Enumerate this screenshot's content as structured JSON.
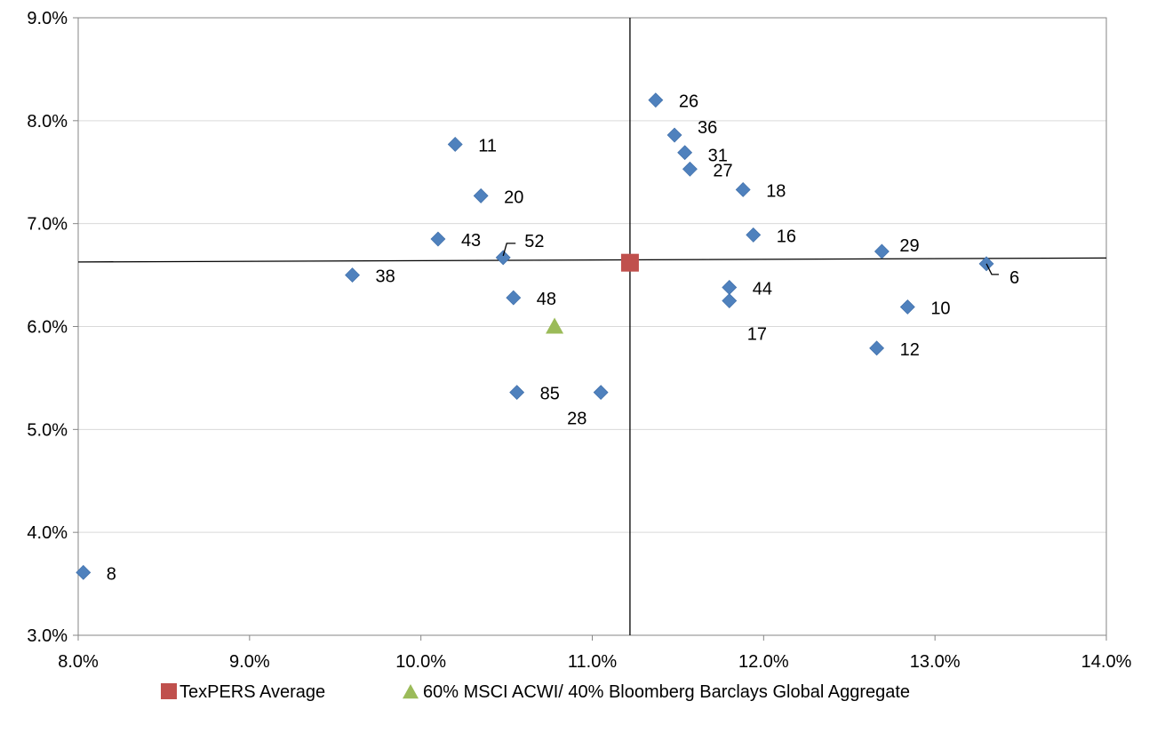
{
  "chart_data": {
    "type": "scatter",
    "title": "",
    "xlabel": "",
    "ylabel": "",
    "xlim": [
      0.08,
      0.14
    ],
    "ylim": [
      0.03,
      0.09
    ],
    "x_ticks": [
      "8.0%",
      "9.0%",
      "10.0%",
      "11.0%",
      "12.0%",
      "13.0%",
      "14.0%"
    ],
    "y_ticks": [
      "3.0%",
      "4.0%",
      "5.0%",
      "6.0%",
      "7.0%",
      "8.0%",
      "9.0%"
    ],
    "grid": "horizontal",
    "series": [
      {
        "marker": "diamond",
        "color": "#4F81BD",
        "points": [
          {
            "label": "26",
            "x": 0.1137,
            "y": 0.082
          },
          {
            "label": "36",
            "x": 0.1148,
            "y": 0.0786
          },
          {
            "label": "31",
            "x": 0.1154,
            "y": 0.0769
          },
          {
            "label": "27",
            "x": 0.1157,
            "y": 0.0753
          },
          {
            "label": "18",
            "x": 0.1188,
            "y": 0.0733
          },
          {
            "label": "16",
            "x": 0.1194,
            "y": 0.0689
          },
          {
            "label": "29",
            "x": 0.1269,
            "y": 0.0673
          },
          {
            "label": "6",
            "x": 0.133,
            "y": 0.0661
          },
          {
            "label": "44",
            "x": 0.118,
            "y": 0.0638
          },
          {
            "label": "17",
            "x": 0.118,
            "y": 0.0625
          },
          {
            "label": "10",
            "x": 0.1284,
            "y": 0.0619
          },
          {
            "label": "12",
            "x": 0.1266,
            "y": 0.0579
          },
          {
            "label": "11",
            "x": 0.102,
            "y": 0.0777
          },
          {
            "label": "20",
            "x": 0.1035,
            "y": 0.0727
          },
          {
            "label": "43",
            "x": 0.101,
            "y": 0.0685
          },
          {
            "label": "52",
            "x": 0.1048,
            "y": 0.0667
          },
          {
            "label": "38",
            "x": 0.096,
            "y": 0.065
          },
          {
            "label": "48",
            "x": 0.1054,
            "y": 0.0628
          },
          {
            "label": "85",
            "x": 0.1056,
            "y": 0.0536
          },
          {
            "label": "28",
            "x": 0.1105,
            "y": 0.0536
          },
          {
            "label": "8",
            "x": 0.0803,
            "y": 0.0361
          }
        ]
      },
      {
        "name": "TexPERS Average",
        "marker": "square",
        "color": "#C0504D",
        "points": [
          {
            "x": 0.1122,
            "y": 0.0662
          }
        ]
      },
      {
        "name": "60% MSCI ACWI/ 40% Bloomberg Barclays Global Aggregate",
        "marker": "triangle",
        "color": "#9BBB59",
        "points": [
          {
            "x": 0.1078,
            "y": 0.06
          }
        ]
      }
    ],
    "reference_lines": {
      "vertical_x": 0.1122,
      "horizontal_y": 0.0664
    },
    "legend": {
      "placement": "bottom",
      "items": [
        "TexPERS Average",
        "60% MSCI ACWI/ 40% Bloomberg Barclays Global Aggregate"
      ]
    }
  }
}
